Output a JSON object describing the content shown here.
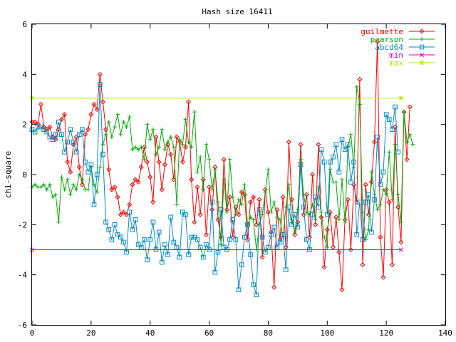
{
  "chart_data": {
    "type": "line",
    "title": "Hash size 16411",
    "xlabel": "",
    "ylabel": "chi-square",
    "xlim": [
      0,
      140
    ],
    "ylim": [
      -6,
      6
    ],
    "xticks": [
      0,
      20,
      40,
      60,
      80,
      100,
      120,
      140
    ],
    "yticks": [
      -6,
      -4,
      -2,
      0,
      2,
      4,
      6
    ],
    "grid": false,
    "legend_position": "top-right",
    "series": [
      {
        "name": "guilmette",
        "color": "#ff0000",
        "marker": "diamond",
        "values": [
          2.1,
          2.1,
          2.0,
          2.8,
          1.9,
          1.8,
          1.9,
          1.5,
          1.4,
          1.8,
          2.2,
          2.4,
          0.5,
          0.1,
          1.2,
          1.5,
          0.3,
          -0.4,
          1.6,
          1.8,
          2.4,
          2.8,
          2.6,
          4.0,
          2.9,
          1.8,
          0.2,
          -0.6,
          -0.5,
          -0.9,
          -1.6,
          -1.5,
          -1.6,
          -1.2,
          -0.4,
          -0.2,
          -0.3,
          0.3,
          1.1,
          0.5,
          -0.1,
          -1.1,
          1.5,
          0.5,
          -0.6,
          0.4,
          1.2,
          0.8,
          -0.2,
          1.5,
          1.3,
          0.5,
          1.1,
          2.9,
          -0.2,
          -1.9,
          -0.5,
          -1.6,
          -0.2,
          -2.4,
          -0.5,
          -1.4,
          0.3,
          -1.8,
          -2.5,
          0.6,
          -1.4,
          -0.9,
          -2.5,
          -1.3,
          -1.6,
          -0.7,
          -0.8,
          -2.6,
          -1.1,
          -0.9,
          -2.0,
          -1.0,
          -3.3,
          -0.6,
          -1.5,
          -2.3,
          -4.5,
          -1.4,
          -2.6,
          -0.9,
          -2.9,
          1.3,
          -1.0,
          -2.4,
          -1.9,
          1.2,
          -1.6,
          -0.8,
          -2.5,
          0.0,
          -2.0,
          1.2,
          -1.7,
          -3.7,
          -2.2,
          -1.5,
          -2.9,
          -1.7,
          -3.1,
          -4.6,
          -1.8,
          -1.0,
          -3.0,
          -0.4,
          -1.1,
          3.8,
          -3.6,
          -0.4,
          -1.6,
          -0.3,
          1.3,
          5.3,
          -2.5,
          -4.1,
          -0.6,
          -1.1,
          -3.6,
          1.9,
          -1.3,
          -2.7,
          2.5,
          0.6,
          2.7
        ]
      },
      {
        "name": "pearson",
        "color": "#00aa00",
        "marker": "plus",
        "values": [
          -0.5,
          -0.4,
          -0.5,
          -0.5,
          -0.4,
          -0.6,
          -0.4,
          -0.9,
          -0.8,
          -1.9,
          -0.1,
          -0.6,
          -0.2,
          -0.8,
          -0.4,
          -0.6,
          0.0,
          -0.2,
          -0.6,
          -0.6,
          0.3,
          -0.4,
          -0.7,
          0.3,
          1.2,
          1.6,
          2.1,
          1.5,
          1.9,
          2.4,
          1.6,
          2.1,
          1.9,
          2.3,
          1.0,
          1.1,
          1.0,
          1.1,
          0.6,
          2.0,
          1.4,
          1.8,
          0.8,
          1.1,
          1.8,
          1.0,
          1.3,
          1.5,
          1.1,
          -1.2,
          1.4,
          1.2,
          2.2,
          1.3,
          1.1,
          2.5,
          0.1,
          0.7,
          -0.6,
          1.2,
          0.6,
          -0.6,
          0.2,
          -1.1,
          -2.8,
          -0.2,
          -1.5,
          0.6,
          -0.9,
          -1.6,
          -1.0,
          -1.2,
          -0.4,
          -2.0,
          -1.7,
          -1.8,
          -3.0,
          -2.0,
          -1.6,
          -0.7,
          0.2,
          -1.5,
          -1.1,
          -1.7,
          -1.8,
          -2.5,
          -1.3,
          -0.4,
          -1.8,
          -2.3,
          -1.4,
          0.6,
          -0.8,
          -1.5,
          -1.6,
          -1.2,
          -1.8,
          -0.5,
          -1.5,
          -2.5,
          -2.9,
          0.2,
          -0.3,
          -0.3,
          -1.8,
          -0.2,
          -1.9,
          1.1,
          1.6,
          0.3,
          3.5,
          2.8,
          -1.5,
          -2.6,
          -2.2,
          0.1,
          -0.8,
          -1.4,
          -1.2,
          -0.6,
          -0.8,
          0.9,
          -1.0,
          1.2,
          -0.8,
          -1.9,
          2.5,
          1.3,
          1.6,
          1.2
        ]
      },
      {
        "name": "abcd64",
        "color": "#0088cc",
        "marker": "square",
        "values": [
          1.8,
          1.7,
          1.9,
          1.9,
          1.8,
          1.7,
          1.5,
          1.4,
          1.6,
          2.1,
          1.6,
          0.9,
          1.3,
          1.8,
          1.3,
          0.9,
          1.6,
          1.8,
          0.5,
          0.1,
          0.4,
          -1.2,
          0.0,
          3.6,
          0.8,
          -1.9,
          -2.2,
          -2.6,
          -2.0,
          -2.4,
          -2.5,
          -2.7,
          -3.1,
          -1.5,
          -2.2,
          -1.8,
          -2.8,
          -2.9,
          -2.6,
          -3.4,
          -2.6,
          -1.9,
          -3.0,
          -2.3,
          -3.5,
          -2.8,
          -3.2,
          -1.7,
          -2.7,
          -2.9,
          -3.3,
          -1.5,
          -1.6,
          -3.2,
          -2.5,
          -2.5,
          -2.6,
          -2.9,
          -3.3,
          -2.8,
          -3.0,
          -1.1,
          -3.9,
          -3.1,
          -1.4,
          -2.9,
          -3.0,
          -2.6,
          -1.8,
          -2.6,
          -4.6,
          -3.6,
          -2.5,
          -2.0,
          -3.2,
          -4.4,
          -4.8,
          -1.4,
          -2.5,
          -3.1,
          -2.9,
          -2.4,
          -2.1,
          -2.9,
          -2.7,
          -2.4,
          -3.8,
          -1.3,
          -2.0,
          -1.6,
          -2.1,
          0.4,
          -1.3,
          -2.6,
          -3.0,
          -1.6,
          -0.9,
          -1.3,
          1.0,
          0.5,
          -1.6,
          0.5,
          0.7,
          1.2,
          0.1,
          1.4,
          1.0,
          1.2,
          -0.3,
          0.5,
          -2.4,
          -1.1,
          -2.6,
          -1.1,
          -0.8,
          -2.3,
          -1.0,
          1.5,
          -0.4,
          0.1,
          2.4,
          2.2,
          1.8,
          2.7,
          0.9
        ]
      },
      {
        "name": "min",
        "color": "#cc00cc",
        "marker": "cross",
        "points": [
          [
            0,
            -3.0
          ],
          [
            125,
            -3.0
          ]
        ]
      },
      {
        "name": "max",
        "color": "#aaee00",
        "marker": "star",
        "points": [
          [
            0,
            3.05
          ],
          [
            125,
            3.05
          ]
        ]
      }
    ]
  }
}
